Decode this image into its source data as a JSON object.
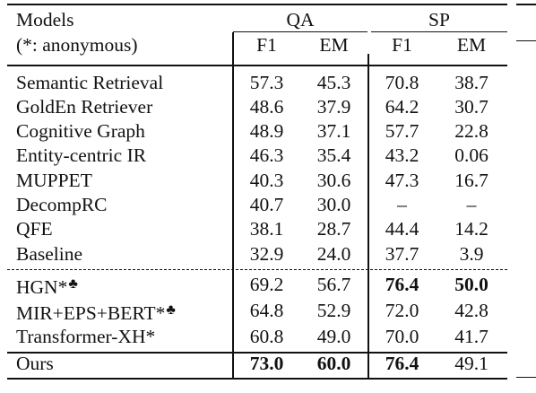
{
  "header": {
    "models": "Models",
    "models_note": "(*: anonymous)",
    "group_qa": "QA",
    "group_sp": "SP",
    "cols": [
      "F1",
      "EM",
      "F1",
      "EM"
    ]
  },
  "rows": [
    {
      "model": "Semantic Retrieval",
      "mark": "",
      "qa_f1": "57.3",
      "qa_em": "45.3",
      "sp_f1": "70.8",
      "sp_em": "38.7",
      "bold": []
    },
    {
      "model": "GoldEn Retriever",
      "mark": "",
      "qa_f1": "48.6",
      "qa_em": "37.9",
      "sp_f1": "64.2",
      "sp_em": "30.7",
      "bold": []
    },
    {
      "model": "Cognitive Graph",
      "mark": "",
      "qa_f1": "48.9",
      "qa_em": "37.1",
      "sp_f1": "57.7",
      "sp_em": "22.8",
      "bold": []
    },
    {
      "model": "Entity-centric IR",
      "mark": "",
      "qa_f1": "46.3",
      "qa_em": "35.4",
      "sp_f1": "43.2",
      "sp_em": "0.06",
      "bold": []
    },
    {
      "model": "MUPPET",
      "mark": "",
      "qa_f1": "40.3",
      "qa_em": "30.6",
      "sp_f1": "47.3",
      "sp_em": "16.7",
      "bold": []
    },
    {
      "model": "DecompRC",
      "mark": "",
      "qa_f1": "40.7",
      "qa_em": "30.0",
      "sp_f1": "–",
      "sp_em": "–",
      "bold": []
    },
    {
      "model": "QFE",
      "mark": "",
      "qa_f1": "38.1",
      "qa_em": "28.7",
      "sp_f1": "44.4",
      "sp_em": "14.2",
      "bold": []
    },
    {
      "model": "Baseline",
      "mark": "",
      "qa_f1": "32.9",
      "qa_em": "24.0",
      "sp_f1": "37.7",
      "sp_em": "3.9",
      "bold": []
    },
    {
      "model": "HGN*",
      "mark": "♣",
      "qa_f1": "69.2",
      "qa_em": "56.7",
      "sp_f1": "76.4",
      "sp_em": "50.0",
      "bold": [
        "sp_f1",
        "sp_em"
      ]
    },
    {
      "model": "MIR+EPS+BERT*",
      "mark": "♣",
      "qa_f1": "64.8",
      "qa_em": "52.9",
      "sp_f1": "72.0",
      "sp_em": "42.8",
      "bold": []
    },
    {
      "model": "Transformer-XH*",
      "mark": "",
      "qa_f1": "60.8",
      "qa_em": "49.0",
      "sp_f1": "70.0",
      "sp_em": "41.7",
      "bold": []
    },
    {
      "model": "Ours",
      "mark": "",
      "qa_f1": "73.0",
      "qa_em": "60.0",
      "sp_f1": "76.4",
      "sp_em": "49.1",
      "bold": [
        "qa_f1",
        "qa_em",
        "sp_f1"
      ]
    }
  ]
}
